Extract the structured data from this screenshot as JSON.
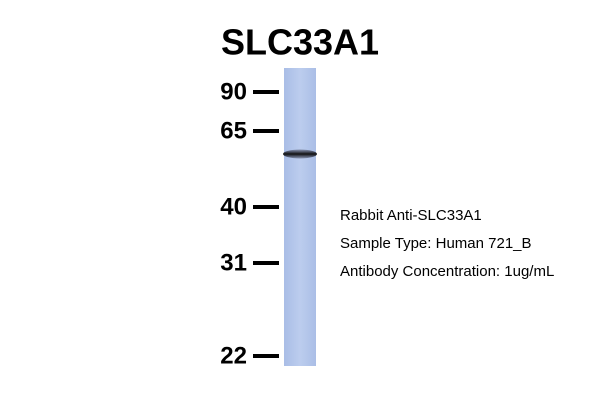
{
  "title": "SLC33A1",
  "markers": [
    90,
    65,
    40,
    31,
    22
  ],
  "info": [
    "Rabbit Anti-SLC33A1",
    "Sample Type: Human 721_B",
    "Antibody Concentration: 1ug/mL"
  ]
}
